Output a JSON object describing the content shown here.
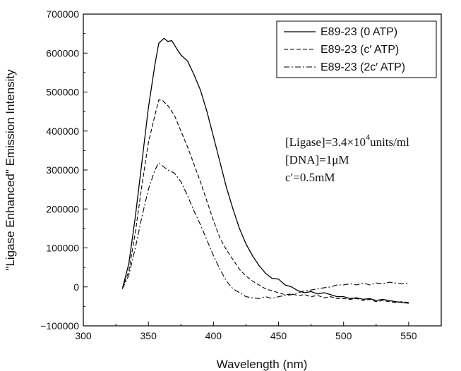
{
  "chart_data": {
    "type": "line",
    "xlabel": "Wavelength (nm)",
    "ylabel": "\"Ligase Enhanced\" Emission Intensity",
    "xlim": [
      300,
      575
    ],
    "ylim": [
      -100000,
      700000
    ],
    "xticks": [
      300,
      350,
      400,
      450,
      500,
      550
    ],
    "yticks": [
      -100000,
      0,
      100000,
      200000,
      300000,
      400000,
      500000,
      600000,
      700000
    ],
    "xtick_labels": [
      "300",
      "350",
      "400",
      "450",
      "500",
      "550"
    ],
    "ytick_labels": [
      "−100000",
      "0",
      "100000",
      "200000",
      "300000",
      "400000",
      "500000",
      "600000",
      "700000"
    ],
    "grid": false,
    "legend_position": "top-right",
    "annotations": {
      "ligase_prefix": "[Ligase]=3.4×10",
      "ligase_exp": "4",
      "ligase_suffix": "units/ml",
      "dna": "[DNA]=1μM",
      "cprime": "c′=0.5mM"
    },
    "series": [
      {
        "name": "E89-23 (0 ATP)",
        "style": "solid",
        "color": "#000000",
        "x": [
          330,
          335,
          340,
          345,
          350,
          355,
          358,
          362,
          365,
          368,
          372,
          375,
          380,
          385,
          390,
          395,
          400,
          405,
          410,
          415,
          420,
          425,
          430,
          435,
          440,
          445,
          450,
          455,
          460,
          465,
          470,
          475,
          480,
          485,
          490,
          495,
          500,
          505,
          510,
          515,
          520,
          525,
          530,
          535,
          540,
          545,
          550
        ],
        "y": [
          -5000,
          60000,
          180000,
          320000,
          460000,
          570000,
          625000,
          638000,
          630000,
          632000,
          610000,
          595000,
          580000,
          545000,
          505000,
          450000,
          385000,
          320000,
          255000,
          200000,
          150000,
          110000,
          80000,
          55000,
          35000,
          22000,
          20000,
          5000,
          0,
          -10000,
          -15000,
          -12000,
          -18000,
          -15000,
          -20000,
          -25000,
          -25000,
          -30000,
          -28000,
          -32000,
          -30000,
          -35000,
          -32000,
          -35000,
          -38000,
          -40000,
          -42000
        ]
      },
      {
        "name": "E89-23 (c′ ATP)",
        "style": "dashed",
        "color": "#000000",
        "x": [
          330,
          335,
          340,
          345,
          350,
          355,
          358,
          361,
          365,
          370,
          375,
          380,
          385,
          390,
          395,
          400,
          405,
          410,
          415,
          420,
          425,
          430,
          435,
          440,
          445,
          450,
          455,
          460,
          465,
          470,
          475,
          480,
          485,
          490,
          495,
          500,
          505,
          510,
          515,
          520,
          525,
          530,
          535,
          540,
          545,
          550
        ],
        "y": [
          -5000,
          40000,
          140000,
          260000,
          370000,
          440000,
          480000,
          478000,
          465000,
          440000,
          400000,
          360000,
          315000,
          270000,
          220000,
          170000,
          125000,
          95000,
          70000,
          45000,
          28000,
          15000,
          5000,
          -5000,
          -10000,
          -15000,
          -20000,
          -18000,
          -22000,
          -20000,
          -25000,
          -22000,
          -28000,
          -25000,
          -30000,
          -30000,
          -32000,
          -30000,
          -35000,
          -32000,
          -38000,
          -35000,
          -38000,
          -40000,
          -38000,
          -40000
        ]
      },
      {
        "name": "E89-23 (2c′ ATP)",
        "style": "dashdot",
        "color": "#000000",
        "x": [
          330,
          335,
          340,
          345,
          350,
          355,
          358,
          361,
          365,
          370,
          375,
          380,
          385,
          390,
          395,
          400,
          405,
          410,
          415,
          420,
          425,
          430,
          435,
          440,
          445,
          450,
          455,
          460,
          465,
          470,
          475,
          480,
          485,
          490,
          495,
          500,
          505,
          510,
          515,
          520,
          525,
          530,
          535,
          540,
          545,
          550
        ],
        "y": [
          -5000,
          30000,
          100000,
          180000,
          250000,
          300000,
          318000,
          310000,
          300000,
          292000,
          270000,
          235000,
          195000,
          160000,
          120000,
          80000,
          45000,
          15000,
          -5000,
          -15000,
          -25000,
          -28000,
          -30000,
          -25000,
          -30000,
          -25000,
          -22000,
          -20000,
          -15000,
          -10000,
          -8000,
          -5000,
          -2000,
          0,
          5000,
          5000,
          8000,
          5000,
          10000,
          5000,
          10000,
          8000,
          12000,
          10000,
          8000,
          10000
        ]
      }
    ]
  }
}
